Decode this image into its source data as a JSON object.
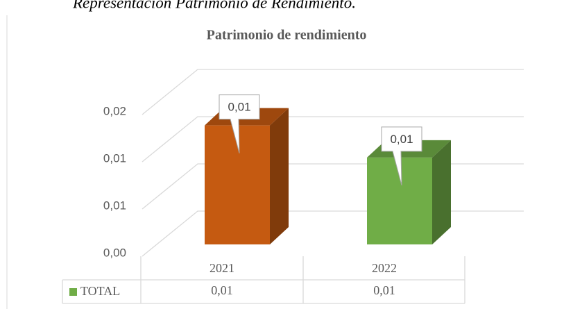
{
  "caption": "Representación Patrimonio de Rendimiento.",
  "chart_data": {
    "type": "bar3d",
    "title": "Patrimonio de rendimiento",
    "categories": [
      "2021",
      "2022"
    ],
    "series": [
      {
        "name": "TOTAL",
        "color": "#70ad47",
        "point_colors": [
          "#c55a11",
          "#70ad47"
        ],
        "values": [
          0.0126,
          0.0092
        ],
        "value_labels": [
          "0,01",
          "0,01"
        ]
      }
    ],
    "ylim": [
      0,
      0.015
    ],
    "yticks": [
      {
        "value": 0,
        "label": "0,00"
      },
      {
        "value": 0.005,
        "label": "0,01"
      },
      {
        "value": 0.01,
        "label": "0,01"
      },
      {
        "value": 0.015,
        "label": "0,02"
      }
    ],
    "grid": true,
    "data_table": true
  }
}
